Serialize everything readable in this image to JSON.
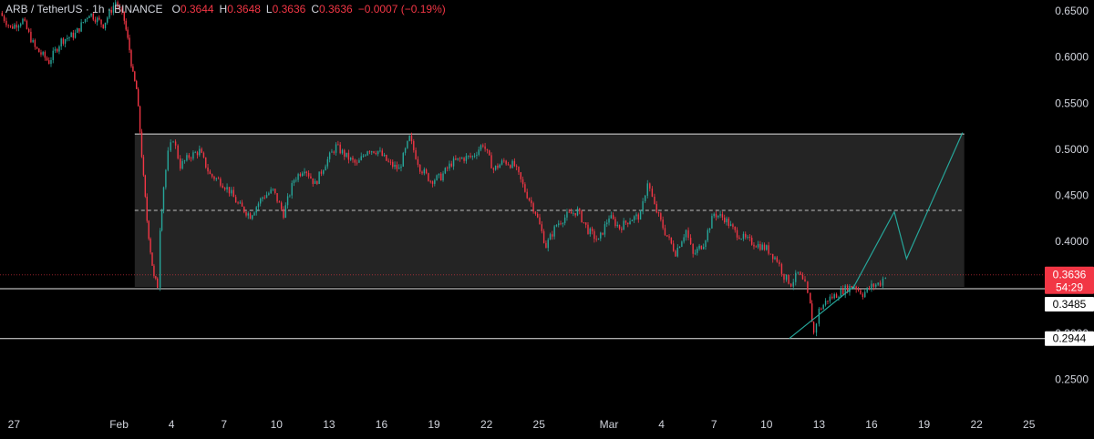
{
  "header": {
    "symbol": "ARB / TetherUS · 1h · BINANCE",
    "o_label": "O",
    "o_value": "0.3644",
    "h_label": "H",
    "h_value": "0.3648",
    "l_label": "L",
    "l_value": "0.3636",
    "c_label": "C",
    "c_value": "0.3636",
    "change": "−0.0007 (−0.19%)"
  },
  "price_tags": {
    "current": "0.3636",
    "countdown": "54:29",
    "support": "0.3485",
    "low": "0.2944"
  },
  "colors": {
    "up": "#26a69a",
    "down": "#f23645",
    "background": "#000000",
    "box_fill": "#2a2a2a",
    "projection": "#26a69a"
  },
  "chart_data": {
    "type": "candlestick",
    "y_ticks": [
      "0.6500",
      "0.6000",
      "0.5500",
      "0.5000",
      "0.4500",
      "0.4000",
      "0.3500",
      "0.3000",
      "0.2500"
    ],
    "y_tick_values": [
      0.65,
      0.6,
      0.55,
      0.5,
      0.45,
      0.4,
      0.35,
      0.3,
      0.25
    ],
    "x_ticks": [
      "27",
      "Feb",
      "4",
      "7",
      "10",
      "13",
      "16",
      "19",
      "22",
      "25",
      "Mar",
      "4",
      "7",
      "10",
      "13",
      "16",
      "19",
      "22",
      "25"
    ],
    "x_tick_days": [
      -5,
      1,
      4,
      7,
      10,
      13,
      16,
      19,
      22,
      25,
      29,
      32,
      35,
      38,
      41,
      44,
      47,
      50,
      53
    ],
    "ylim": [
      0.215,
      0.662
    ],
    "xlim_days": [
      -5.8,
      53.9
    ],
    "range_box": {
      "top": 0.5165,
      "bottom": 0.3505,
      "mid": 0.4335,
      "start_day": 1.9,
      "end_day": 49.3
    },
    "horizontal_levels": [
      0.3485,
      0.2944
    ],
    "current_price": 0.3636,
    "projection_path": [
      [
        39.3,
        0.2944
      ],
      [
        43.0,
        0.351
      ],
      [
        45.3,
        0.432
      ],
      [
        46.0,
        0.381
      ],
      [
        49.2,
        0.518
      ]
    ],
    "price_path": [
      [
        -5.8,
        0.648
      ],
      [
        -5.2,
        0.632
      ],
      [
        -4.5,
        0.64
      ],
      [
        -3.8,
        0.61
      ],
      [
        -3.0,
        0.595
      ],
      [
        -2.3,
        0.618
      ],
      [
        -1.5,
        0.625
      ],
      [
        -0.7,
        0.648
      ],
      [
        0.1,
        0.635
      ],
      [
        0.8,
        0.66
      ],
      [
        1.3,
        0.64
      ],
      [
        1.6,
        0.608
      ],
      [
        1.8,
        0.58
      ],
      [
        2.0,
        0.565
      ],
      [
        2.2,
        0.52
      ],
      [
        2.4,
        0.468
      ],
      [
        2.6,
        0.423
      ],
      [
        2.8,
        0.39
      ],
      [
        3.0,
        0.36
      ],
      [
        3.2,
        0.352
      ],
      [
        3.35,
        0.415
      ],
      [
        3.55,
        0.46
      ],
      [
        3.8,
        0.495
      ],
      [
        4.1,
        0.512
      ],
      [
        4.5,
        0.482
      ],
      [
        5.0,
        0.492
      ],
      [
        5.6,
        0.498
      ],
      [
        6.2,
        0.472
      ],
      [
        6.8,
        0.465
      ],
      [
        7.3,
        0.455
      ],
      [
        7.8,
        0.44
      ],
      [
        8.5,
        0.428
      ],
      [
        9.2,
        0.448
      ],
      [
        9.8,
        0.455
      ],
      [
        10.4,
        0.43
      ],
      [
        11.0,
        0.467
      ],
      [
        11.6,
        0.48
      ],
      [
        12.2,
        0.462
      ],
      [
        12.8,
        0.485
      ],
      [
        13.4,
        0.503
      ],
      [
        14.0,
        0.492
      ],
      [
        14.6,
        0.483
      ],
      [
        15.2,
        0.5
      ],
      [
        15.8,
        0.498
      ],
      [
        16.4,
        0.485
      ],
      [
        17.0,
        0.478
      ],
      [
        17.6,
        0.512
      ],
      [
        18.2,
        0.48
      ],
      [
        18.8,
        0.466
      ],
      [
        19.4,
        0.47
      ],
      [
        20.0,
        0.485
      ],
      [
        20.6,
        0.49
      ],
      [
        21.2,
        0.492
      ],
      [
        21.8,
        0.506
      ],
      [
        22.4,
        0.478
      ],
      [
        23.0,
        0.487
      ],
      [
        23.6,
        0.482
      ],
      [
        24.2,
        0.455
      ],
      [
        24.8,
        0.432
      ],
      [
        25.4,
        0.395
      ],
      [
        26.0,
        0.418
      ],
      [
        26.6,
        0.428
      ],
      [
        27.2,
        0.433
      ],
      [
        27.8,
        0.412
      ],
      [
        28.4,
        0.4
      ],
      [
        29.0,
        0.427
      ],
      [
        29.6,
        0.415
      ],
      [
        30.2,
        0.424
      ],
      [
        30.8,
        0.428
      ],
      [
        31.2,
        0.465
      ],
      [
        31.6,
        0.438
      ],
      [
        32.2,
        0.41
      ],
      [
        32.8,
        0.388
      ],
      [
        33.4,
        0.412
      ],
      [
        33.8,
        0.385
      ],
      [
        34.4,
        0.398
      ],
      [
        35.0,
        0.43
      ],
      [
        35.6,
        0.425
      ],
      [
        36.2,
        0.41
      ],
      [
        36.8,
        0.402
      ],
      [
        37.4,
        0.397
      ],
      [
        38.0,
        0.392
      ],
      [
        38.6,
        0.38
      ],
      [
        39.0,
        0.362
      ],
      [
        39.4,
        0.354
      ],
      [
        39.8,
        0.365
      ],
      [
        40.2,
        0.352
      ],
      [
        40.5,
        0.33
      ],
      [
        40.7,
        0.3
      ],
      [
        41.0,
        0.325
      ],
      [
        41.5,
        0.337
      ],
      [
        42.0,
        0.342
      ],
      [
        42.5,
        0.348
      ],
      [
        43.0,
        0.352
      ],
      [
        43.5,
        0.343
      ],
      [
        44.0,
        0.351
      ],
      [
        44.5,
        0.355
      ],
      [
        44.8,
        0.3636
      ]
    ]
  }
}
